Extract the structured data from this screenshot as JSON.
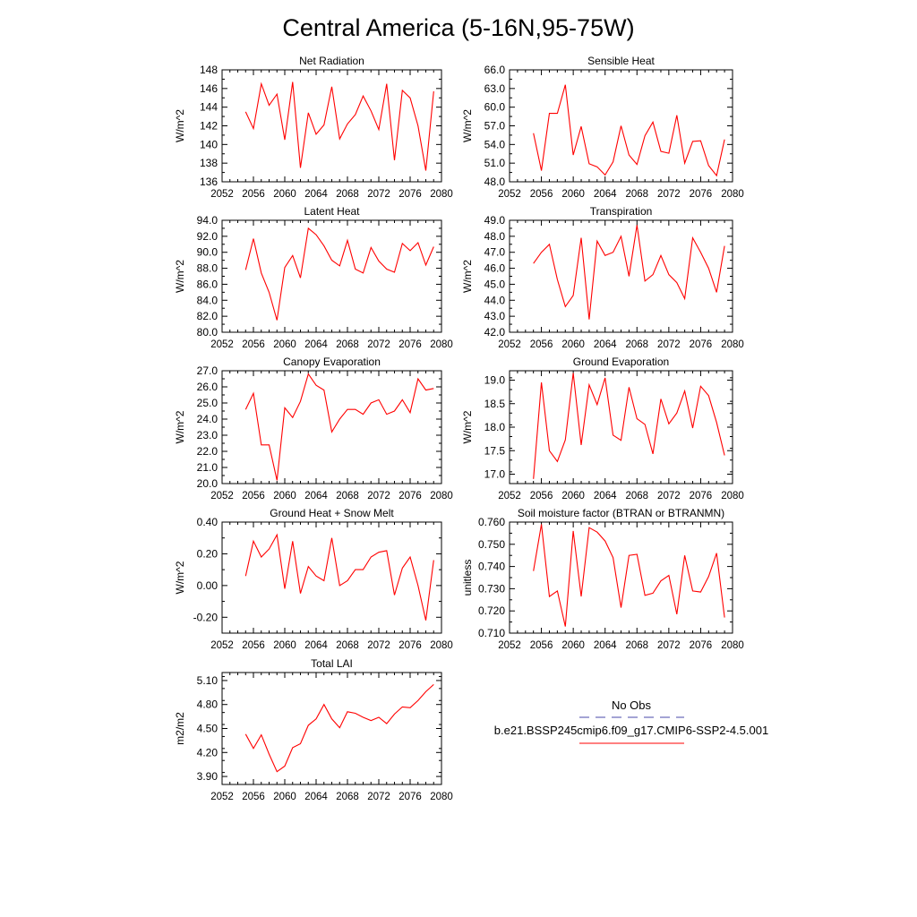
{
  "title": "Central America (5-16N,95-75W)",
  "chart_data": [
    {
      "type": "line",
      "title": "Net Radiation",
      "ylabel": "W/m^2",
      "ylim": [
        136,
        148
      ],
      "yticks": [
        136,
        138,
        140,
        142,
        144,
        146,
        148
      ],
      "ytick_labels": [
        "136",
        "138",
        "140",
        "142",
        "144",
        "146",
        "148"
      ],
      "xlim": [
        2052,
        2080
      ],
      "xticks": [
        2052,
        2056,
        2060,
        2064,
        2068,
        2072,
        2076,
        2080
      ],
      "x": [
        2055,
        2056,
        2057,
        2058,
        2059,
        2060,
        2061,
        2062,
        2063,
        2064,
        2065,
        2066,
        2067,
        2068,
        2069,
        2070,
        2071,
        2072,
        2073,
        2074,
        2075,
        2076,
        2077,
        2078,
        2079
      ],
      "series": [
        {
          "color": "#ff0000",
          "values": [
            143.5,
            141.7,
            146.5,
            144.2,
            145.4,
            140.5,
            146.7,
            137.5,
            143.4,
            141.1,
            142.1,
            146.2,
            140.6,
            142.2,
            143.2,
            145.2,
            143.6,
            141.6,
            146.5,
            138.3,
            145.8,
            145.0,
            142.0,
            137.2,
            145.7
          ]
        }
      ]
    },
    {
      "type": "line",
      "title": "Sensible Heat",
      "ylabel": "W/m^2",
      "ylim": [
        48,
        66
      ],
      "yticks": [
        48,
        51,
        54,
        57,
        60,
        63,
        66
      ],
      "ytick_labels": [
        "48.0",
        "51.0",
        "54.0",
        "57.0",
        "60.0",
        "63.0",
        "66.0"
      ],
      "xlim": [
        2052,
        2080
      ],
      "xticks": [
        2052,
        2056,
        2060,
        2064,
        2068,
        2072,
        2076,
        2080
      ],
      "x": [
        2055,
        2056,
        2057,
        2058,
        2059,
        2060,
        2061,
        2062,
        2063,
        2064,
        2065,
        2066,
        2067,
        2068,
        2069,
        2070,
        2071,
        2072,
        2073,
        2074,
        2075,
        2076,
        2077,
        2078,
        2079
      ],
      "series": [
        {
          "color": "#ff0000",
          "values": [
            55.8,
            49.8,
            59.0,
            59.0,
            63.6,
            52.3,
            56.9,
            50.9,
            50.4,
            49.1,
            51.2,
            57.0,
            52.3,
            50.8,
            55.4,
            57.6,
            52.9,
            52.6,
            58.7,
            51.0,
            54.5,
            54.6,
            50.6,
            49.0,
            54.8
          ]
        }
      ]
    },
    {
      "type": "line",
      "title": "Latent Heat",
      "ylabel": "W/m^2",
      "ylim": [
        80,
        94
      ],
      "yticks": [
        80,
        82,
        84,
        86,
        88,
        90,
        92,
        94
      ],
      "ytick_labels": [
        "80.0",
        "82.0",
        "84.0",
        "86.0",
        "88.0",
        "90.0",
        "92.0",
        "94.0"
      ],
      "xlim": [
        2052,
        2080
      ],
      "xticks": [
        2052,
        2056,
        2060,
        2064,
        2068,
        2072,
        2076,
        2080
      ],
      "x": [
        2055,
        2056,
        2057,
        2058,
        2059,
        2060,
        2061,
        2062,
        2063,
        2064,
        2065,
        2066,
        2067,
        2068,
        2069,
        2070,
        2071,
        2072,
        2073,
        2074,
        2075,
        2076,
        2077,
        2078,
        2079
      ],
      "series": [
        {
          "color": "#ff0000",
          "values": [
            87.8,
            91.7,
            87.4,
            85.0,
            81.5,
            88.1,
            89.6,
            86.8,
            93.0,
            92.2,
            90.8,
            89.0,
            88.3,
            91.5,
            87.9,
            87.4,
            90.6,
            88.9,
            87.9,
            87.5,
            91.1,
            90.2,
            91.2,
            88.4,
            90.7
          ]
        }
      ]
    },
    {
      "type": "line",
      "title": "Transpiration",
      "ylabel": "W/m^2",
      "ylim": [
        42,
        49
      ],
      "yticks": [
        42,
        43,
        44,
        45,
        46,
        47,
        48,
        49
      ],
      "ytick_labels": [
        "42.0",
        "43.0",
        "44.0",
        "45.0",
        "46.0",
        "47.0",
        "48.0",
        "49.0"
      ],
      "xlim": [
        2052,
        2080
      ],
      "xticks": [
        2052,
        2056,
        2060,
        2064,
        2068,
        2072,
        2076,
        2080
      ],
      "x": [
        2055,
        2056,
        2057,
        2058,
        2059,
        2060,
        2061,
        2062,
        2063,
        2064,
        2065,
        2066,
        2067,
        2068,
        2069,
        2070,
        2071,
        2072,
        2073,
        2074,
        2075,
        2076,
        2077,
        2078,
        2079
      ],
      "series": [
        {
          "color": "#ff0000",
          "values": [
            46.3,
            47.0,
            47.5,
            45.3,
            43.6,
            44.3,
            47.9,
            42.8,
            47.7,
            46.8,
            47.0,
            48.0,
            45.5,
            48.7,
            45.2,
            45.6,
            46.8,
            45.6,
            45.1,
            44.1,
            47.9,
            47.0,
            46.0,
            44.5,
            47.4
          ]
        }
      ]
    },
    {
      "type": "line",
      "title": "Canopy Evaporation",
      "ylabel": "W/m^2",
      "ylim": [
        20,
        27
      ],
      "yticks": [
        20,
        21,
        22,
        23,
        24,
        25,
        26,
        27
      ],
      "ytick_labels": [
        "20.0",
        "21.0",
        "22.0",
        "23.0",
        "24.0",
        "25.0",
        "26.0",
        "27.0"
      ],
      "xlim": [
        2052,
        2080
      ],
      "xticks": [
        2052,
        2056,
        2060,
        2064,
        2068,
        2072,
        2076,
        2080
      ],
      "x": [
        2055,
        2056,
        2057,
        2058,
        2059,
        2060,
        2061,
        2062,
        2063,
        2064,
        2065,
        2066,
        2067,
        2068,
        2069,
        2070,
        2071,
        2072,
        2073,
        2074,
        2075,
        2076,
        2077,
        2078,
        2079
      ],
      "series": [
        {
          "color": "#ff0000",
          "values": [
            24.6,
            25.6,
            22.4,
            22.4,
            20.2,
            24.7,
            24.1,
            25.1,
            26.8,
            26.1,
            25.8,
            23.2,
            24.0,
            24.6,
            24.6,
            24.3,
            25.0,
            25.2,
            24.3,
            24.5,
            25.2,
            24.4,
            26.5,
            25.8,
            25.9
          ]
        }
      ]
    },
    {
      "type": "line",
      "title": "Ground Evaporation",
      "ylabel": "W/m^2",
      "ylim": [
        16.8,
        19.2
      ],
      "yticks": [
        17.0,
        17.5,
        18.0,
        18.5,
        19.0
      ],
      "ytick_labels": [
        "17.0",
        "17.5",
        "18.0",
        "18.5",
        "19.0"
      ],
      "xlim": [
        2052,
        2080
      ],
      "xticks": [
        2052,
        2056,
        2060,
        2064,
        2068,
        2072,
        2076,
        2080
      ],
      "x": [
        2055,
        2056,
        2057,
        2058,
        2059,
        2060,
        2061,
        2062,
        2063,
        2064,
        2065,
        2066,
        2067,
        2068,
        2069,
        2070,
        2071,
        2072,
        2073,
        2074,
        2075,
        2076,
        2077,
        2078,
        2079
      ],
      "series": [
        {
          "color": "#ff0000",
          "values": [
            16.9,
            18.95,
            17.5,
            17.27,
            17.73,
            19.15,
            17.62,
            18.9,
            18.48,
            19.05,
            17.83,
            17.72,
            18.85,
            18.18,
            18.06,
            17.43,
            18.6,
            18.07,
            18.3,
            18.77,
            17.98,
            18.87,
            18.67,
            18.1,
            17.4
          ]
        }
      ]
    },
    {
      "type": "line",
      "title": "Ground Heat + Snow Melt",
      "ylabel": "W/m^2",
      "ylim": [
        -0.3,
        0.4
      ],
      "yticks": [
        -0.2,
        0.0,
        0.2,
        0.4
      ],
      "ytick_labels": [
        "-0.20",
        "0.00",
        "0.20",
        "0.40"
      ],
      "xlim": [
        2052,
        2080
      ],
      "xticks": [
        2052,
        2056,
        2060,
        2064,
        2068,
        2072,
        2076,
        2080
      ],
      "x": [
        2055,
        2056,
        2057,
        2058,
        2059,
        2060,
        2061,
        2062,
        2063,
        2064,
        2065,
        2066,
        2067,
        2068,
        2069,
        2070,
        2071,
        2072,
        2073,
        2074,
        2075,
        2076,
        2077,
        2078,
        2079
      ],
      "series": [
        {
          "color": "#ff0000",
          "values": [
            0.06,
            0.28,
            0.18,
            0.23,
            0.32,
            -0.02,
            0.28,
            -0.05,
            0.12,
            0.06,
            0.03,
            0.3,
            0.0,
            0.03,
            0.1,
            0.1,
            0.18,
            0.21,
            0.22,
            -0.06,
            0.11,
            0.18,
            0.0,
            -0.22,
            0.16
          ]
        }
      ]
    },
    {
      "type": "line",
      "title": "Soil moisture factor (BTRAN or BTRANMN)",
      "ylabel": "unitless",
      "ylim": [
        0.71,
        0.76
      ],
      "yticks": [
        0.71,
        0.72,
        0.73,
        0.74,
        0.75,
        0.76
      ],
      "ytick_labels": [
        "0.710",
        "0.720",
        "0.730",
        "0.740",
        "0.750",
        "0.760"
      ],
      "xlim": [
        2052,
        2080
      ],
      "xticks": [
        2052,
        2056,
        2060,
        2064,
        2068,
        2072,
        2076,
        2080
      ],
      "x": [
        2055,
        2056,
        2057,
        2058,
        2059,
        2060,
        2061,
        2062,
        2063,
        2064,
        2065,
        2066,
        2067,
        2068,
        2069,
        2070,
        2071,
        2072,
        2073,
        2074,
        2075,
        2076,
        2077,
        2078,
        2079
      ],
      "series": [
        {
          "color": "#ff0000",
          "values": [
            0.738,
            0.759,
            0.7265,
            0.729,
            0.713,
            0.756,
            0.7265,
            0.7575,
            0.7555,
            0.7515,
            0.744,
            0.7215,
            0.745,
            0.7455,
            0.727,
            0.728,
            0.7335,
            0.736,
            0.7185,
            0.745,
            0.729,
            0.7285,
            0.7355,
            0.746,
            0.717
          ]
        }
      ]
    },
    {
      "type": "line",
      "title": "Total LAI",
      "ylabel": "m2/m2",
      "ylim": [
        3.8,
        5.2
      ],
      "yticks": [
        3.9,
        4.2,
        4.5,
        4.8,
        5.1
      ],
      "ytick_labels": [
        "3.90",
        "4.20",
        "4.50",
        "4.80",
        "5.10"
      ],
      "xlim": [
        2052,
        2080
      ],
      "xticks": [
        2052,
        2056,
        2060,
        2064,
        2068,
        2072,
        2076,
        2080
      ],
      "x": [
        2055,
        2056,
        2057,
        2058,
        2059,
        2060,
        2061,
        2062,
        2063,
        2064,
        2065,
        2066,
        2067,
        2068,
        2069,
        2070,
        2071,
        2072,
        2073,
        2074,
        2075,
        2076,
        2077,
        2078,
        2079
      ],
      "series": [
        {
          "color": "#ff0000",
          "values": [
            4.43,
            4.25,
            4.42,
            4.18,
            3.96,
            4.03,
            4.26,
            4.31,
            4.54,
            4.62,
            4.8,
            4.62,
            4.51,
            4.71,
            4.69,
            4.64,
            4.6,
            4.64,
            4.56,
            4.68,
            4.77,
            4.76,
            4.85,
            4.96,
            5.05
          ]
        }
      ]
    }
  ],
  "legend": {
    "entries": [
      {
        "label": "No Obs",
        "color": "#4a4aa8",
        "dash": "dashed"
      },
      {
        "label": "b.e21.BSSP245cmip6.f09_g17.CMIP6-SSP2-4.5.001",
        "color": "#ff0000",
        "dash": "solid"
      }
    ]
  }
}
